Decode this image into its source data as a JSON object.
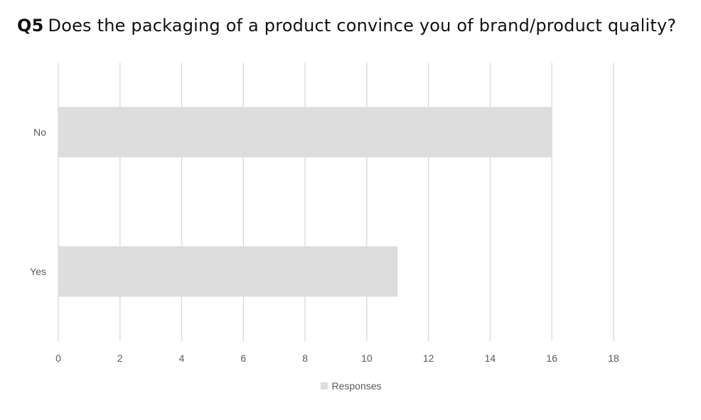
{
  "title": {
    "number": "Q5",
    "text": "Does the packaging of a product convince you of brand/product quality?"
  },
  "chart_data": {
    "type": "bar",
    "orientation": "horizontal",
    "categories": [
      "No",
      "Yes"
    ],
    "series": [
      {
        "name": "Responses",
        "values": [
          16,
          11
        ],
        "color": "#dddddd"
      }
    ],
    "xlim": [
      0,
      18
    ],
    "x_ticks": [
      0,
      2,
      4,
      6,
      8,
      10,
      12,
      14,
      16,
      18
    ],
    "grid": "vertical",
    "legend_position": "bottom",
    "gridline_color": "#d9d9d9",
    "text_color": "#595959"
  }
}
